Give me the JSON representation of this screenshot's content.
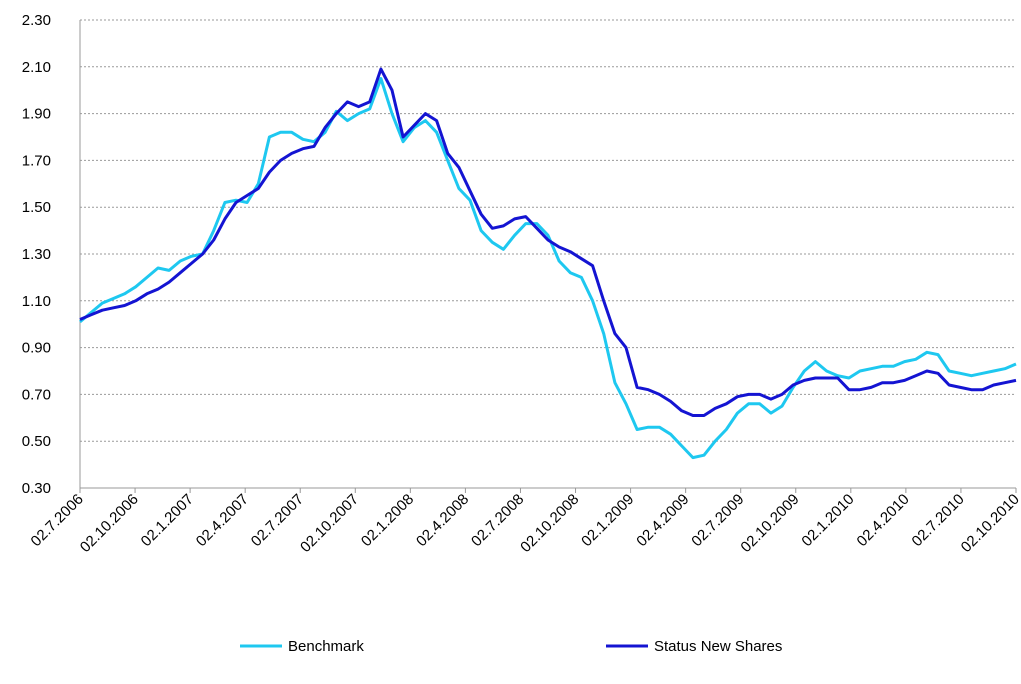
{
  "chart_data": {
    "type": "line",
    "title": "",
    "xlabel": "",
    "ylabel": "",
    "ylim": [
      0.3,
      2.3
    ],
    "yticks": [
      "0.30",
      "0.50",
      "0.70",
      "0.90",
      "1.10",
      "1.30",
      "1.50",
      "1.70",
      "1.90",
      "2.10",
      "2.30"
    ],
    "grid": "horizontal dotted",
    "legend_position": "bottom",
    "x_tick_labels": [
      "02.7.2006",
      "02.10.2006",
      "02.1.2007",
      "02.4.2007",
      "02.7.2007",
      "02.10.2007",
      "02.1.2008",
      "02.4.2008",
      "02.7.2008",
      "02.10.2008",
      "02.1.2009",
      "02.4.2009",
      "02.7.2009",
      "02.10.2009",
      "02.1.2010",
      "02.4.2010",
      "02.7.2010",
      "02.10.2010"
    ],
    "series": [
      {
        "name": "Benchmark",
        "color": "#1ec8f0",
        "values": [
          1.01,
          1.05,
          1.09,
          1.11,
          1.13,
          1.16,
          1.2,
          1.24,
          1.23,
          1.27,
          1.29,
          1.3,
          1.4,
          1.52,
          1.53,
          1.52,
          1.6,
          1.8,
          1.82,
          1.82,
          1.79,
          1.78,
          1.82,
          1.91,
          1.87,
          1.9,
          1.92,
          2.05,
          1.9,
          1.78,
          1.84,
          1.87,
          1.82,
          1.7,
          1.58,
          1.53,
          1.4,
          1.35,
          1.32,
          1.38,
          1.43,
          1.43,
          1.38,
          1.27,
          1.22,
          1.2,
          1.1,
          0.96,
          0.75,
          0.66,
          0.55,
          0.56,
          0.56,
          0.53,
          0.48,
          0.43,
          0.44,
          0.5,
          0.55,
          0.62,
          0.66,
          0.66,
          0.62,
          0.65,
          0.73,
          0.8,
          0.84,
          0.8,
          0.78,
          0.77,
          0.8,
          0.81,
          0.82,
          0.82,
          0.84,
          0.85,
          0.88,
          0.87,
          0.8,
          0.79,
          0.78,
          0.79,
          0.8,
          0.81,
          0.83
        ]
      },
      {
        "name": "Status New Shares",
        "color": "#1414d2",
        "values": [
          1.02,
          1.04,
          1.06,
          1.07,
          1.08,
          1.1,
          1.13,
          1.15,
          1.18,
          1.22,
          1.26,
          1.3,
          1.36,
          1.45,
          1.52,
          1.55,
          1.58,
          1.65,
          1.7,
          1.73,
          1.75,
          1.76,
          1.84,
          1.9,
          1.95,
          1.93,
          1.95,
          2.09,
          2.0,
          1.8,
          1.85,
          1.9,
          1.87,
          1.73,
          1.67,
          1.57,
          1.47,
          1.41,
          1.42,
          1.45,
          1.46,
          1.41,
          1.36,
          1.33,
          1.31,
          1.28,
          1.25,
          1.1,
          0.96,
          0.9,
          0.73,
          0.72,
          0.7,
          0.67,
          0.63,
          0.61,
          0.61,
          0.64,
          0.66,
          0.69,
          0.7,
          0.7,
          0.68,
          0.7,
          0.74,
          0.76,
          0.77,
          0.77,
          0.77,
          0.72,
          0.72,
          0.73,
          0.75,
          0.75,
          0.76,
          0.78,
          0.8,
          0.79,
          0.74,
          0.73,
          0.72,
          0.72,
          0.74,
          0.75,
          0.76
        ]
      }
    ]
  }
}
